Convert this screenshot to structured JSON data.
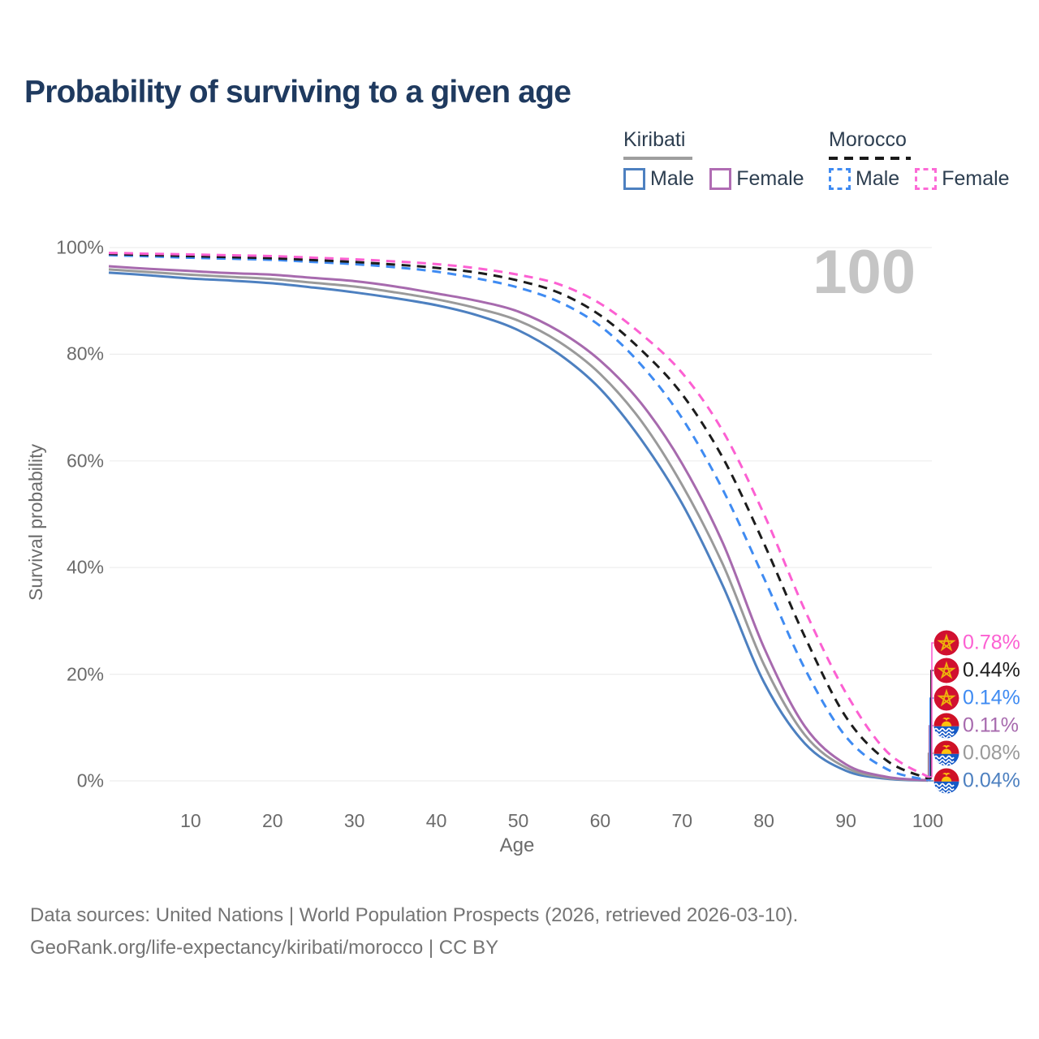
{
  "title": "Probability of surviving to a given age",
  "watermark": "100",
  "legend": {
    "groups": [
      {
        "label": "Kiribati",
        "line_style": "solid",
        "underline_color": "#9e9e9e",
        "items": [
          {
            "label": "Male",
            "color": "#4d80c0",
            "dashed": false
          },
          {
            "label": "Female",
            "color": "#b06cb3",
            "dashed": false
          }
        ]
      },
      {
        "label": "Morocco",
        "line_style": "dashed",
        "underline_color": "#1a1a1a",
        "items": [
          {
            "label": "Male",
            "color": "#3f8bf2",
            "dashed": true
          },
          {
            "label": "Female",
            "color": "#fc6ad6",
            "dashed": true
          }
        ]
      }
    ]
  },
  "y_axis": {
    "title": "Survival probability",
    "ticks": [
      100,
      80,
      60,
      40,
      20,
      0
    ],
    "tick_suffix": "%"
  },
  "x_axis": {
    "title": "Age",
    "ticks": [
      10,
      20,
      30,
      40,
      50,
      60,
      70,
      80,
      90,
      100
    ]
  },
  "chart_data": {
    "type": "line",
    "title": "Probability of surviving to a given age",
    "xlabel": "Age",
    "ylabel": "Survival probability",
    "xlim": [
      0,
      100
    ],
    "ylim": [
      0,
      100
    ],
    "grid": true,
    "legend_position": "top-right",
    "x": [
      0,
      5,
      10,
      15,
      20,
      25,
      30,
      35,
      40,
      45,
      50,
      55,
      60,
      65,
      70,
      75,
      80,
      85,
      90,
      95,
      100
    ],
    "series": [
      {
        "name": "Kiribati Male",
        "country": "Kiribati",
        "sex": "Male",
        "flag": "kiribati",
        "color": "#4d80c0",
        "dashed": false,
        "end_label": "0.04%",
        "end_value": 0.04,
        "values": [
          95.3,
          94.8,
          94.2,
          93.8,
          93.3,
          92.5,
          91.6,
          90.5,
          89.2,
          87.3,
          84.5,
          80.0,
          73.5,
          64.0,
          52.0,
          36.5,
          18.5,
          7.0,
          1.9,
          0.4,
          0.04
        ]
      },
      {
        "name": "Kiribati Both sexes",
        "country": "Kiribati",
        "sex": "Both",
        "flag": "kiribati",
        "color": "#9a9a9a",
        "dashed": false,
        "end_label": "0.08%",
        "end_value": 0.08,
        "values": [
          95.9,
          95.4,
          94.9,
          94.5,
          94.1,
          93.4,
          92.7,
          91.6,
          90.3,
          88.6,
          86.3,
          82.3,
          76.3,
          67.5,
          55.5,
          40.5,
          21.8,
          8.6,
          2.5,
          0.55,
          0.08
        ]
      },
      {
        "name": "Kiribati Female",
        "country": "Kiribati",
        "sex": "Female",
        "flag": "kiribati",
        "color": "#a76aae",
        "dashed": false,
        "end_label": "0.11%",
        "end_value": 0.11,
        "values": [
          96.5,
          96.0,
          95.6,
          95.2,
          94.9,
          94.3,
          93.7,
          92.7,
          91.4,
          90.0,
          88.0,
          84.3,
          78.8,
          70.8,
          59.5,
          44.5,
          25.0,
          10.2,
          3.1,
          0.75,
          0.11
        ]
      },
      {
        "name": "Morocco Male",
        "country": "Morocco",
        "sex": "Male",
        "flag": "morocco",
        "color": "#3f8bf2",
        "dashed": true,
        "end_label": "0.14%",
        "end_value": 0.14,
        "values": [
          98.6,
          98.35,
          98.1,
          97.9,
          97.7,
          97.3,
          96.9,
          96.3,
          95.5,
          94.2,
          92.5,
          89.8,
          85.3,
          78.0,
          68.0,
          54.5,
          38.0,
          21.0,
          8.3,
          2.2,
          0.14
        ]
      },
      {
        "name": "Morocco Both sexes",
        "country": "Morocco",
        "sex": "Both",
        "flag": "morocco",
        "color": "#1c1c1c",
        "dashed": true,
        "end_label": "0.44%",
        "end_value": 0.44,
        "values": [
          98.8,
          98.6,
          98.4,
          98.2,
          98.0,
          97.65,
          97.3,
          96.8,
          96.2,
          95.3,
          93.8,
          91.5,
          87.3,
          80.8,
          72.5,
          60.5,
          44.5,
          27.0,
          12.0,
          3.8,
          0.44
        ]
      },
      {
        "name": "Morocco Female",
        "country": "Morocco",
        "sex": "Female",
        "flag": "morocco",
        "color": "#fc60d2",
        "dashed": true,
        "end_label": "0.78%",
        "end_value": 0.78,
        "values": [
          99.0,
          98.85,
          98.7,
          98.55,
          98.4,
          98.1,
          97.8,
          97.4,
          96.9,
          96.1,
          94.9,
          93.1,
          89.5,
          83.8,
          76.5,
          65.5,
          50.0,
          32.0,
          16.5,
          5.5,
          0.78
        ]
      }
    ]
  },
  "colors": {
    "title_text": "#1f3a5f",
    "axis_text": "#6b6b6b",
    "gridline": "#ededed",
    "watermark": "#c5c5c5",
    "footer_text": "#747474",
    "flag_morocco_red": "#d11030",
    "flag_morocco_star": "#edb40c",
    "flag_kiribati_red": "#cf1126",
    "flag_kiribati_blue": "#1559c6",
    "flag_kiribati_gold": "#ffc20e"
  },
  "footer": {
    "line1": "Data sources: United Nations | World Population Prospects (2026, retrieved 2026-03-10).",
    "line2": "GeoRank.org/life-expectancy/kiribati/morocco | CC BY"
  }
}
